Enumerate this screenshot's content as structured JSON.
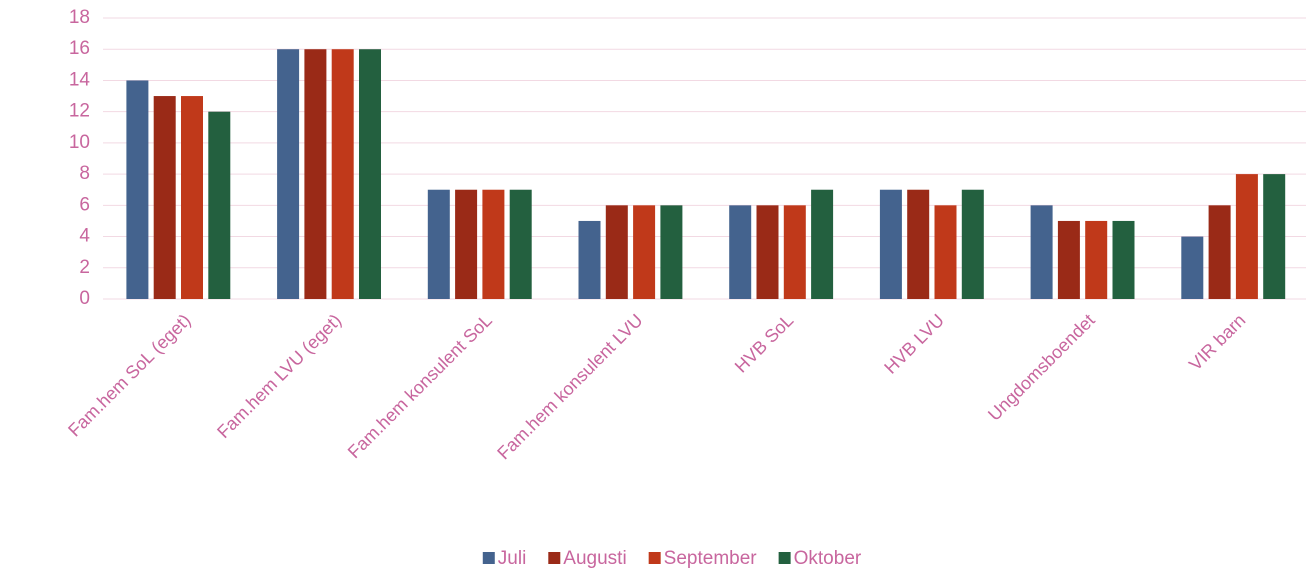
{
  "chart_data": {
    "type": "bar",
    "categories": [
      "Fam.hem SoL (eget)",
      "Fam.hem LVU (eget)",
      "Fam.hem konsulent SoL",
      "Fam.hem konsulent LVU",
      "HVB SoL",
      "HVB LVU",
      "Ungdomsboendet",
      "VIR barn"
    ],
    "series": [
      {
        "name": "Juli",
        "color": "#44638e",
        "values": [
          14,
          16,
          7,
          5,
          6,
          7,
          6,
          4
        ]
      },
      {
        "name": "Augusti",
        "color": "#9a2a17",
        "values": [
          13,
          16,
          7,
          6,
          6,
          7,
          5,
          6
        ]
      },
      {
        "name": "September",
        "color": "#c0391a",
        "values": [
          13,
          16,
          7,
          6,
          6,
          6,
          5,
          8
        ]
      },
      {
        "name": "Oktober",
        "color": "#23603f",
        "values": [
          12,
          16,
          7,
          6,
          7,
          7,
          5,
          8
        ]
      }
    ],
    "ylim": [
      0,
      18
    ],
    "yticks": [
      0,
      2,
      4,
      6,
      8,
      10,
      12,
      14,
      16,
      18
    ],
    "grid": true,
    "legend": "bottom"
  }
}
